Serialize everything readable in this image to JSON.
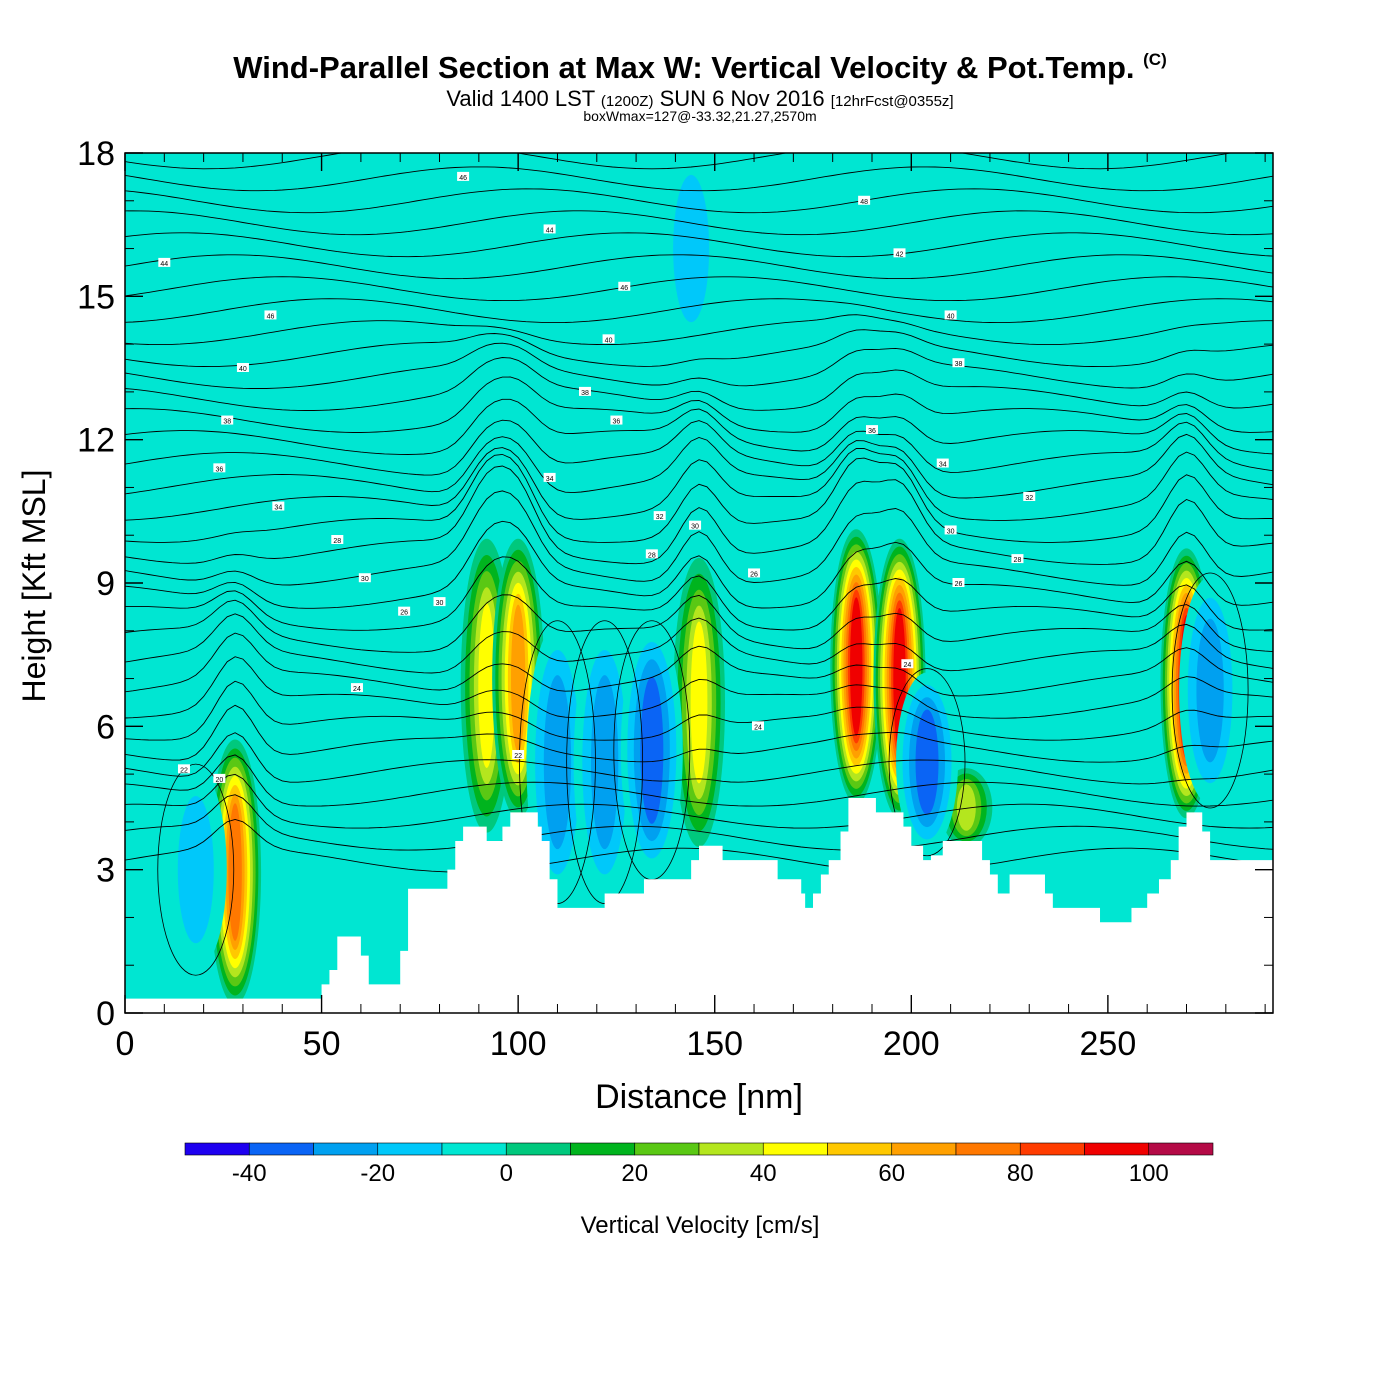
{
  "title": {
    "main": "Wind-Parallel Section at Max W: Vertical Velocity & Pot.Temp.",
    "copyright": "(C)",
    "valid_prefix": "Valid 1400 LST",
    "valid_utc": "(1200Z)",
    "valid_date": "SUN 6 Nov 2016",
    "forecast": "[12hrFcst@0355z]",
    "subtitle": "boxWmax=127@-33.32,21.27,2570m"
  },
  "chart_data": {
    "type": "heatmap",
    "xlabel": "Distance [nm]",
    "ylabel": "Height [Kft MSL]",
    "xlim": [
      0,
      292
    ],
    "ylim": [
      0,
      18
    ],
    "xticks": [
      0,
      50,
      100,
      150,
      200,
      250
    ],
    "yticks": [
      0,
      3,
      6,
      9,
      12,
      15,
      18
    ],
    "background_value": 0,
    "terrain": [
      [
        0,
        0.3
      ],
      [
        48,
        0.3
      ],
      [
        50,
        0.6
      ],
      [
        52,
        0.9
      ],
      [
        54,
        1.6
      ],
      [
        58,
        1.6
      ],
      [
        60,
        1.2
      ],
      [
        62,
        0.6
      ],
      [
        68,
        0.6
      ],
      [
        70,
        1.3
      ],
      [
        72,
        2.6
      ],
      [
        80,
        2.6
      ],
      [
        82,
        3.0
      ],
      [
        84,
        3.6
      ],
      [
        86,
        3.9
      ],
      [
        91,
        3.9
      ],
      [
        92,
        3.6
      ],
      [
        95,
        3.6
      ],
      [
        96,
        3.9
      ],
      [
        98,
        4.2
      ],
      [
        104,
        4.2
      ],
      [
        105,
        3.9
      ],
      [
        106,
        3.6
      ],
      [
        108,
        2.8
      ],
      [
        110,
        2.2
      ],
      [
        120,
        2.2
      ],
      [
        122,
        2.5
      ],
      [
        130,
        2.5
      ],
      [
        132,
        2.8
      ],
      [
        142,
        2.8
      ],
      [
        144,
        3.2
      ],
      [
        146,
        3.5
      ],
      [
        150,
        3.5
      ],
      [
        152,
        3.2
      ],
      [
        164,
        3.2
      ],
      [
        166,
        2.8
      ],
      [
        172,
        2.5
      ],
      [
        173,
        2.2
      ],
      [
        175,
        2.5
      ],
      [
        177,
        2.9
      ],
      [
        179,
        3.2
      ],
      [
        182,
        3.8
      ],
      [
        184,
        4.5
      ],
      [
        190,
        4.5
      ],
      [
        191,
        4.2
      ],
      [
        196,
        4.2
      ],
      [
        198,
        3.9
      ],
      [
        200,
        3.5
      ],
      [
        203,
        3.2
      ],
      [
        205,
        3.3
      ],
      [
        208,
        3.6
      ],
      [
        216,
        3.6
      ],
      [
        218,
        3.2
      ],
      [
        220,
        2.9
      ],
      [
        222,
        2.5
      ],
      [
        225,
        2.9
      ],
      [
        232,
        2.9
      ],
      [
        234,
        2.5
      ],
      [
        236,
        2.2
      ],
      [
        247,
        2.2
      ],
      [
        248,
        1.9
      ],
      [
        255,
        1.9
      ],
      [
        256,
        2.2
      ],
      [
        260,
        2.5
      ],
      [
        263,
        2.8
      ],
      [
        266,
        3.2
      ],
      [
        268,
        3.9
      ],
      [
        270,
        4.2
      ],
      [
        273,
        4.2
      ],
      [
        274,
        3.8
      ],
      [
        276,
        3.2
      ],
      [
        292,
        3.2
      ]
    ],
    "updrafts": [
      {
        "x": 28,
        "bottom": 0.3,
        "top": 5.6,
        "peak": 75
      },
      {
        "x": 92,
        "bottom": 3.9,
        "top": 9.8,
        "peak": 50
      },
      {
        "x": 100,
        "bottom": 4.2,
        "top": 9.8,
        "peak": 70
      },
      {
        "x": 146,
        "bottom": 3.6,
        "top": 9.4,
        "peak": 45
      },
      {
        "x": 186,
        "bottom": 4.5,
        "top": 10.0,
        "peak": 100
      },
      {
        "x": 197,
        "bottom": 4.2,
        "top": 9.8,
        "peak": 95
      },
      {
        "x": 270,
        "bottom": 4.2,
        "top": 9.6,
        "peak": 100
      },
      {
        "x": 214,
        "bottom": 3.6,
        "top": 5.0,
        "peak": 35
      }
    ],
    "downdrafts": [
      {
        "x": 18,
        "bottom": 1.0,
        "top": 5.0,
        "peak": -15
      },
      {
        "x": 110,
        "bottom": 2.5,
        "top": 8.0,
        "peak": -25
      },
      {
        "x": 122,
        "bottom": 2.5,
        "top": 8.0,
        "peak": -28
      },
      {
        "x": 134,
        "bottom": 3.0,
        "top": 8.0,
        "peak": -38
      },
      {
        "x": 204,
        "bottom": 3.5,
        "top": 7.0,
        "peak": -35
      },
      {
        "x": 276,
        "bottom": 4.5,
        "top": 9.0,
        "peak": -30
      },
      {
        "x": 144,
        "bottom": 14.0,
        "top": 18.0,
        "peak": -18
      }
    ],
    "theta_labels": [
      {
        "x": 10,
        "y": 15.7,
        "text": "44"
      },
      {
        "x": 37,
        "y": 14.6,
        "text": "46"
      },
      {
        "x": 30,
        "y": 13.5,
        "text": "40"
      },
      {
        "x": 26,
        "y": 12.4,
        "text": "38"
      },
      {
        "x": 24,
        "y": 11.4,
        "text": "36"
      },
      {
        "x": 39,
        "y": 10.6,
        "text": "34"
      },
      {
        "x": 54,
        "y": 9.9,
        "text": "28"
      },
      {
        "x": 61,
        "y": 9.1,
        "text": "30"
      },
      {
        "x": 71,
        "y": 8.4,
        "text": "26"
      },
      {
        "x": 80,
        "y": 8.6,
        "text": "30"
      },
      {
        "x": 59,
        "y": 6.8,
        "text": "24"
      },
      {
        "x": 15,
        "y": 5.1,
        "text": "22"
      },
      {
        "x": 24,
        "y": 4.9,
        "text": "20"
      },
      {
        "x": 100,
        "y": 5.4,
        "text": "22"
      },
      {
        "x": 86,
        "y": 17.5,
        "text": "46"
      },
      {
        "x": 108,
        "y": 16.4,
        "text": "44"
      },
      {
        "x": 127,
        "y": 15.2,
        "text": "46"
      },
      {
        "x": 123,
        "y": 14.1,
        "text": "40"
      },
      {
        "x": 117,
        "y": 13.0,
        "text": "38"
      },
      {
        "x": 125,
        "y": 12.4,
        "text": "36"
      },
      {
        "x": 108,
        "y": 11.2,
        "text": "34"
      },
      {
        "x": 136,
        "y": 10.4,
        "text": "32"
      },
      {
        "x": 145,
        "y": 10.2,
        "text": "30"
      },
      {
        "x": 134,
        "y": 9.6,
        "text": "28"
      },
      {
        "x": 160,
        "y": 9.2,
        "text": "26"
      },
      {
        "x": 161,
        "y": 6.0,
        "text": "24"
      },
      {
        "x": 188,
        "y": 17.0,
        "text": "48"
      },
      {
        "x": 197,
        "y": 15.9,
        "text": "42"
      },
      {
        "x": 210,
        "y": 14.6,
        "text": "40"
      },
      {
        "x": 212,
        "y": 13.6,
        "text": "38"
      },
      {
        "x": 190,
        "y": 12.2,
        "text": "36"
      },
      {
        "x": 208,
        "y": 11.5,
        "text": "34"
      },
      {
        "x": 230,
        "y": 10.8,
        "text": "32"
      },
      {
        "x": 210,
        "y": 10.1,
        "text": "30"
      },
      {
        "x": 227,
        "y": 9.5,
        "text": "28"
      },
      {
        "x": 212,
        "y": 9.0,
        "text": "26"
      },
      {
        "x": 199,
        "y": 7.3,
        "text": "24"
      }
    ],
    "colorbar": {
      "label": "Vertical Velocity [cm/s]",
      "bounds": [
        -50,
        -40,
        -30,
        -20,
        -10,
        0,
        10,
        20,
        30,
        40,
        50,
        60,
        70,
        80,
        90,
        100,
        110
      ],
      "tick_labels": [
        "-40",
        "-20",
        "0",
        "20",
        "40",
        "60",
        "80",
        "100"
      ],
      "tick_values": [
        -40,
        -20,
        0,
        20,
        40,
        60,
        80,
        100
      ],
      "colors": [
        "#1e00f0",
        "#0a64f5",
        "#00a0f0",
        "#00c8fa",
        "#00e6d2",
        "#00c87d",
        "#00b41e",
        "#5ac814",
        "#b4e61e",
        "#ffff00",
        "#ffc800",
        "#ffa000",
        "#ff7800",
        "#ff3c00",
        "#f00000",
        "#b40a46"
      ]
    }
  }
}
